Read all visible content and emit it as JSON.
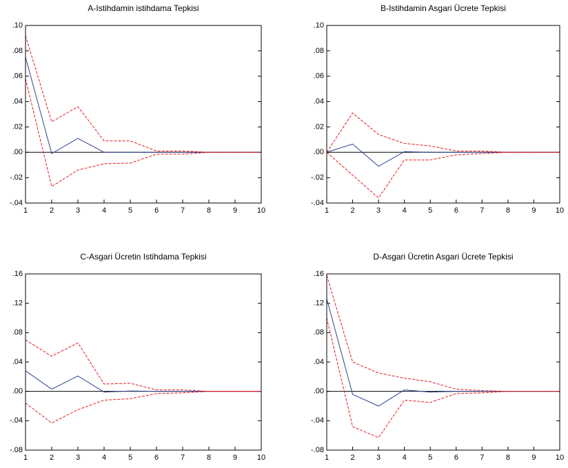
{
  "chart_data": [
    {
      "type": "line",
      "title": "A-Istihdamin istihdama Tepkisi",
      "x": [
        1,
        2,
        3,
        4,
        5,
        6,
        7,
        8,
        9,
        10
      ],
      "xlim": [
        1,
        10
      ],
      "xticks": [
        1,
        2,
        3,
        4,
        5,
        6,
        7,
        8,
        9,
        10
      ],
      "ylim": [
        -0.04,
        0.1
      ],
      "yticks": [
        {
          "value": -0.04,
          "label": "-.04"
        },
        {
          "value": -0.02,
          "label": "-.02"
        },
        {
          "value": 0,
          "label": ".00"
        },
        {
          "value": 0.02,
          "label": ".02"
        },
        {
          "value": 0.04,
          "label": ".04"
        },
        {
          "value": 0.06,
          "label": ".06"
        },
        {
          "value": 0.08,
          "label": ".08"
        },
        {
          "value": 0.1,
          "label": ".10"
        }
      ],
      "zero_line": true,
      "series": [
        {
          "color": "#2b3f8f",
          "dashed": false,
          "values": [
            0.075,
            -0.001,
            0.011,
            0,
            0,
            0,
            0,
            0,
            0,
            0
          ]
        },
        {
          "color": "#e8161a",
          "dashed": true,
          "values": [
            0.092,
            0.024,
            0.036,
            0.009,
            0.009,
            0.001,
            0.001,
            0,
            0,
            0
          ]
        },
        {
          "color": "#e8161a",
          "dashed": true,
          "values": [
            0.058,
            -0.027,
            -0.014,
            -0.009,
            -0.0085,
            -0.0015,
            -0.0015,
            0,
            0,
            0
          ]
        }
      ]
    },
    {
      "type": "line",
      "title": "B-Istihdamin Asgari Ücrete Tepkisi",
      "x": [
        1,
        2,
        3,
        4,
        5,
        6,
        7,
        8,
        9,
        10
      ],
      "xlim": [
        1,
        10
      ],
      "xticks": [
        1,
        2,
        3,
        4,
        5,
        6,
        7,
        8,
        9,
        10
      ],
      "ylim": [
        -0.04,
        0.1
      ],
      "yticks": [
        {
          "value": -0.04,
          "label": "-.04"
        },
        {
          "value": -0.02,
          "label": "-.02"
        },
        {
          "value": 0,
          "label": ".00"
        },
        {
          "value": 0.02,
          "label": ".02"
        },
        {
          "value": 0.04,
          "label": ".04"
        },
        {
          "value": 0.06,
          "label": ".06"
        },
        {
          "value": 0.08,
          "label": ".08"
        },
        {
          "value": 0.1,
          "label": ".10"
        }
      ],
      "zero_line": true,
      "series": [
        {
          "color": "#2b3f8f",
          "dashed": false,
          "values": [
            0,
            0.0065,
            -0.011,
            0.0005,
            0,
            0,
            0,
            0,
            0,
            0
          ]
        },
        {
          "color": "#e8161a",
          "dashed": true,
          "values": [
            0,
            0.031,
            0.014,
            0.007,
            0.005,
            0.001,
            0.001,
            0,
            0,
            0
          ]
        },
        {
          "color": "#e8161a",
          "dashed": true,
          "values": [
            0,
            -0.018,
            -0.036,
            -0.006,
            -0.006,
            -0.002,
            -0.001,
            0,
            0,
            0
          ]
        }
      ]
    },
    {
      "type": "line",
      "title": "C-Asgari Ücretin Istihdama Tepkisi",
      "x": [
        1,
        2,
        3,
        4,
        5,
        6,
        7,
        8,
        9,
        10
      ],
      "xlim": [
        1,
        10
      ],
      "xticks": [
        1,
        2,
        3,
        4,
        5,
        6,
        7,
        8,
        9,
        10
      ],
      "ylim": [
        -0.08,
        0.16
      ],
      "yticks": [
        {
          "value": -0.08,
          "label": "-.08"
        },
        {
          "value": -0.04,
          "label": "-.04"
        },
        {
          "value": 0,
          "label": ".00"
        },
        {
          "value": 0.04,
          "label": ".04"
        },
        {
          "value": 0.08,
          "label": ".08"
        },
        {
          "value": 0.12,
          "label": ".12"
        },
        {
          "value": 0.16,
          "label": ".16"
        }
      ],
      "zero_line": true,
      "series": [
        {
          "color": "#2b3f8f",
          "dashed": false,
          "values": [
            0.028,
            0.003,
            0.021,
            -0.001,
            0.0005,
            0,
            0,
            0,
            0,
            0
          ]
        },
        {
          "color": "#e8161a",
          "dashed": true,
          "values": [
            0.07,
            0.048,
            0.066,
            0.01,
            0.011,
            0.002,
            0.002,
            0,
            0,
            0
          ]
        },
        {
          "color": "#e8161a",
          "dashed": true,
          "values": [
            -0.016,
            -0.043,
            -0.025,
            -0.012,
            -0.01,
            -0.003,
            -0.002,
            0,
            0,
            0
          ]
        }
      ]
    },
    {
      "type": "line",
      "title": "D-Asgari Ücretin Asgari Ücrete Tepkisi",
      "x": [
        1,
        2,
        3,
        4,
        5,
        6,
        7,
        8,
        9,
        10
      ],
      "xlim": [
        1,
        10
      ],
      "xticks": [
        1,
        2,
        3,
        4,
        5,
        6,
        7,
        8,
        9,
        10
      ],
      "ylim": [
        -0.08,
        0.16
      ],
      "yticks": [
        {
          "value": -0.08,
          "label": "-.08"
        },
        {
          "value": -0.04,
          "label": "-.04"
        },
        {
          "value": 0,
          "label": ".00"
        },
        {
          "value": 0.04,
          "label": ".04"
        },
        {
          "value": 0.08,
          "label": ".08"
        },
        {
          "value": 0.12,
          "label": ".12"
        },
        {
          "value": 0.16,
          "label": ".16"
        }
      ],
      "zero_line": true,
      "series": [
        {
          "color": "#2b3f8f",
          "dashed": false,
          "values": [
            0.126,
            -0.004,
            -0.02,
            0.002,
            -0.001,
            0,
            0,
            0,
            0,
            0
          ]
        },
        {
          "color": "#e8161a",
          "dashed": true,
          "values": [
            0.158,
            0.04,
            0.025,
            0.018,
            0.013,
            0.003,
            0.001,
            0,
            0,
            0
          ]
        },
        {
          "color": "#e8161a",
          "dashed": true,
          "values": [
            0.1,
            -0.048,
            -0.063,
            -0.012,
            -0.015,
            -0.003,
            -0.002,
            0,
            0,
            0
          ]
        }
      ]
    }
  ]
}
